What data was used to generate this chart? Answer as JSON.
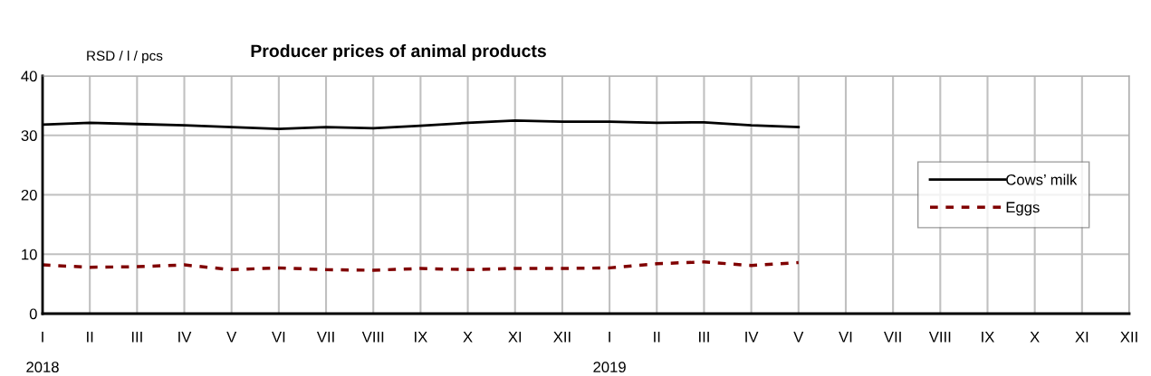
{
  "chart_data": {
    "type": "line",
    "title": "Producer prices of animal products",
    "ylabel": "RSD / l / pcs",
    "categories": [
      "I",
      "II",
      "III",
      "IV",
      "V",
      "VI",
      "VII",
      "VIII",
      "IX",
      "X",
      "XI",
      "XII",
      "I",
      "II",
      "III",
      "IV",
      "V",
      "VI",
      "VII",
      "VIII",
      "IX",
      "X",
      "XI",
      "XII"
    ],
    "series": [
      {
        "name": "Cows’ milk",
        "color": "#000000",
        "line_style": "solid",
        "values": [
          31.8,
          32.1,
          31.9,
          31.7,
          31.4,
          31.1,
          31.4,
          31.2,
          31.6,
          32.1,
          32.5,
          32.3,
          32.3,
          32.1,
          32.2,
          31.7,
          31.4,
          null,
          null,
          null,
          null,
          null,
          null,
          null
        ]
      },
      {
        "name": "Eggs",
        "color": "#800000",
        "line_style": "dashed",
        "values": [
          8.2,
          7.8,
          7.9,
          8.2,
          7.4,
          7.7,
          7.4,
          7.3,
          7.6,
          7.4,
          7.6,
          7.6,
          7.7,
          8.4,
          8.7,
          8.1,
          8.6,
          null,
          null,
          null,
          null,
          null,
          null,
          null
        ]
      }
    ],
    "ylim": [
      0,
      40
    ],
    "yticks": [
      0,
      10,
      20,
      30,
      40
    ],
    "grid": true,
    "legend": "right",
    "marker": "none",
    "annotations": [
      "2018",
      "2019"
    ]
  }
}
